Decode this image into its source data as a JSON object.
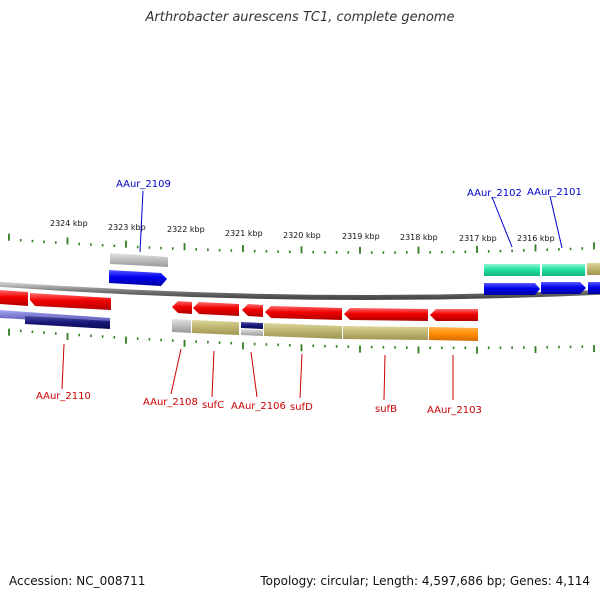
{
  "title": "Arthrobacter aurescens TC1, complete genome",
  "footer": {
    "accession": "Accession: NC_008711",
    "summary": "Topology: circular; Length: 4,597,686 bp; Genes: 4,114"
  },
  "colors": {
    "forward_label": "#0000cc",
    "reverse_label": "#cc0000",
    "backbone": "#7a7a7a",
    "tick": "#2e7d1e"
  },
  "scale_labels": [
    "2324 kbp",
    "2323 kbp",
    "2322 kbp",
    "2321 kbp",
    "2320 kbp",
    "2319 kbp",
    "2318 kbp",
    "2317 kbp",
    "2316 kbp"
  ],
  "gene_labels": [
    {
      "text": "AAur_2109",
      "strand": "forward"
    },
    {
      "text": "AAur_2102",
      "strand": "forward"
    },
    {
      "text": "AAur_2101",
      "strand": "forward"
    },
    {
      "text": "AAur_2110",
      "strand": "reverse"
    },
    {
      "text": "AAur_2108",
      "strand": "reverse"
    },
    {
      "text": "sufC",
      "strand": "reverse"
    },
    {
      "text": "AAur_2106",
      "strand": "reverse"
    },
    {
      "text": "sufD",
      "strand": "reverse"
    },
    {
      "text": "sufB",
      "strand": "reverse"
    },
    {
      "text": "AAur_2103",
      "strand": "reverse"
    }
  ]
}
